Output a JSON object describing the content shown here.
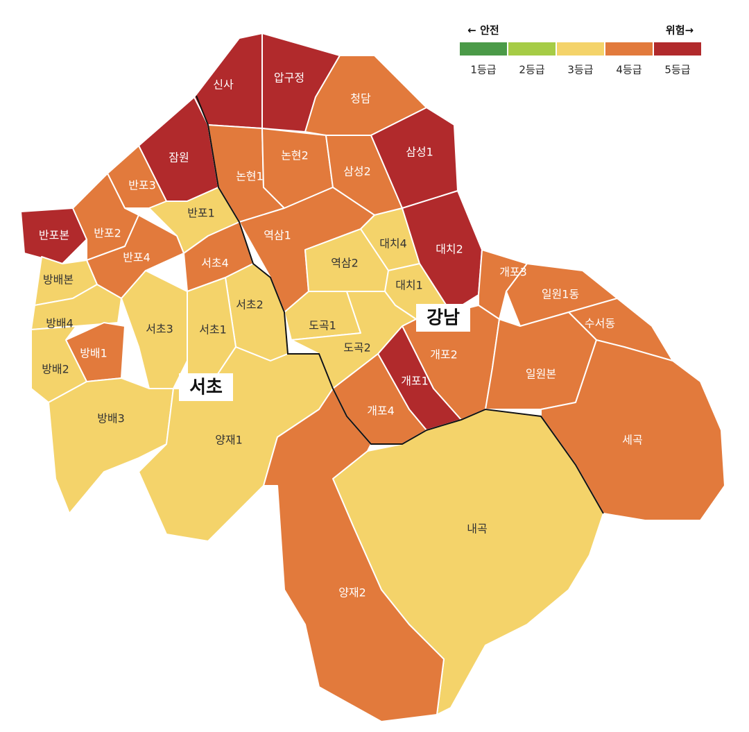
{
  "legend": {
    "safe": "← 안전",
    "danger": "위험→",
    "items": [
      {
        "label": "1등급",
        "color": "#4b9a48"
      },
      {
        "label": "2등급",
        "color": "#a6cc46"
      },
      {
        "label": "3등급",
        "color": "#f4d36a"
      },
      {
        "label": "4등급",
        "color": "#e27a3c"
      },
      {
        "label": "5등급",
        "color": "#b12a2c"
      }
    ]
  },
  "areas": [
    {
      "name": "서초"
    },
    {
      "name": "강남"
    }
  ],
  "regions": [
    {
      "name": "신사",
      "grade": 5
    },
    {
      "name": "압구정",
      "grade": 5
    },
    {
      "name": "청담",
      "grade": 4
    },
    {
      "name": "잠원",
      "grade": 5
    },
    {
      "name": "논현1",
      "grade": 4
    },
    {
      "name": "논현2",
      "grade": 4
    },
    {
      "name": "삼성2",
      "grade": 4
    },
    {
      "name": "삼성1",
      "grade": 5
    },
    {
      "name": "반포3",
      "grade": 4
    },
    {
      "name": "반포본",
      "grade": 5
    },
    {
      "name": "반포2",
      "grade": 4
    },
    {
      "name": "반포1",
      "grade": 3
    },
    {
      "name": "역삼1",
      "grade": 4
    },
    {
      "name": "대치4",
      "grade": 3
    },
    {
      "name": "대치2",
      "grade": 5
    },
    {
      "name": "반포4",
      "grade": 4
    },
    {
      "name": "서초4",
      "grade": 4
    },
    {
      "name": "역삼2",
      "grade": 3
    },
    {
      "name": "방배본",
      "grade": 3
    },
    {
      "name": "서초2",
      "grade": 3
    },
    {
      "name": "대치1",
      "grade": 3
    },
    {
      "name": "개포3",
      "grade": 4
    },
    {
      "name": "일원1동",
      "grade": 4
    },
    {
      "name": "방배4",
      "grade": 3
    },
    {
      "name": "서초3",
      "grade": 3
    },
    {
      "name": "서초1",
      "grade": 3
    },
    {
      "name": "도곡1",
      "grade": 3
    },
    {
      "name": "수서동",
      "grade": 4
    },
    {
      "name": "방배1",
      "grade": 4
    },
    {
      "name": "도곡2",
      "grade": 3
    },
    {
      "name": "개포2",
      "grade": 4
    },
    {
      "name": "방배2",
      "grade": 3
    },
    {
      "name": "개포1",
      "grade": 5
    },
    {
      "name": "일원본",
      "grade": 4
    },
    {
      "name": "방배3",
      "grade": 3
    },
    {
      "name": "개포4",
      "grade": 4
    },
    {
      "name": "양재1",
      "grade": 3
    },
    {
      "name": "세곡",
      "grade": 4
    },
    {
      "name": "내곡",
      "grade": 3
    },
    {
      "name": "양재2",
      "grade": 4
    }
  ]
}
